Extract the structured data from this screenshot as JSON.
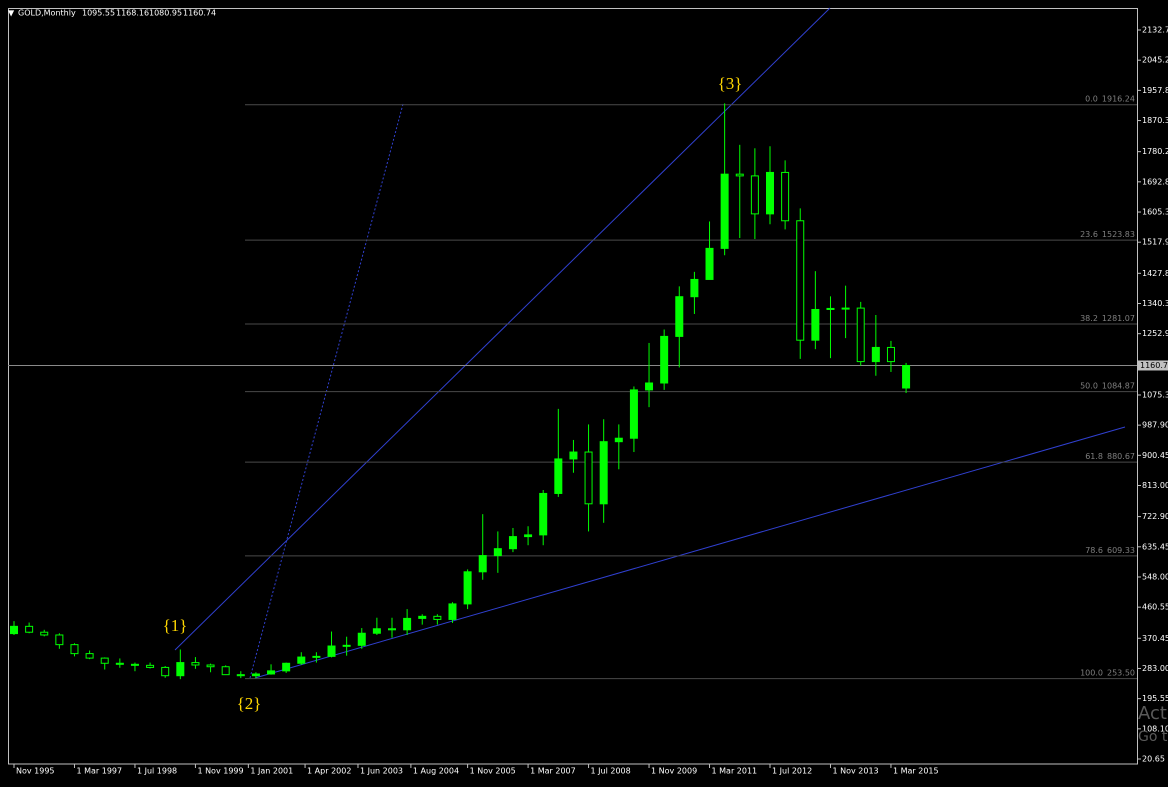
{
  "chart_data": {
    "type": "candlestick",
    "symbol": "GOLD,Monthly",
    "open": [
      384,
      405,
      388,
      380,
      352,
      326,
      313,
      298,
      295,
      292,
      286,
      262,
      300,
      293,
      288,
      265,
      262,
      267,
      276,
      298,
      316,
      318,
      348,
      350,
      385,
      398,
      395,
      428,
      434,
      425,
      470,
      563,
      610,
      630,
      665,
      670,
      790,
      890,
      910,
      760,
      940,
      950,
      1090,
      1110,
      1245,
      1360,
      1410,
      1500,
      1715,
      1710,
      1600,
      1720,
      1580,
      1234,
      1323,
      1326,
      1327,
      1172,
      1213,
      1095.55
    ],
    "high": [
      420,
      416,
      395,
      385,
      356,
      335,
      315,
      312,
      300,
      300,
      290,
      338,
      316,
      297,
      292,
      275,
      272,
      295,
      300,
      330,
      330,
      390,
      375,
      400,
      430,
      430,
      455,
      440,
      440,
      475,
      570,
      730,
      680,
      690,
      695,
      800,
      1035,
      945,
      990,
      1005,
      990,
      1100,
      1226,
      1265,
      1390,
      1432,
      1578,
      1920,
      1800,
      1790,
      1796,
      1755,
      1616,
      1434,
      1361,
      1392,
      1345,
      1307,
      1232,
      1168.16
    ],
    "low": [
      380,
      385,
      376,
      340,
      318,
      310,
      280,
      285,
      275,
      283,
      256,
      252,
      282,
      272,
      264,
      255,
      255,
      265,
      270,
      293,
      300,
      315,
      320,
      340,
      380,
      372,
      380,
      410,
      410,
      415,
      455,
      540,
      560,
      620,
      640,
      640,
      780,
      850,
      680,
      705,
      860,
      910,
      1040,
      1090,
      1155,
      1310,
      1410,
      1480,
      1530,
      1527,
      1570,
      1555,
      1180,
      1208,
      1182,
      1240,
      1160,
      1131,
      1142,
      1080.95
    ],
    "close": [
      405,
      388,
      380,
      352,
      326,
      313,
      298,
      295,
      292,
      286,
      262,
      300,
      293,
      288,
      265,
      262,
      267,
      276,
      298,
      316,
      318,
      348,
      350,
      385,
      398,
      395,
      428,
      434,
      425,
      470,
      563,
      610,
      630,
      665,
      670,
      790,
      890,
      910,
      760,
      940,
      950,
      1090,
      1110,
      1245,
      1360,
      1410,
      1500,
      1715,
      1710,
      1600,
      1720,
      1580,
      1234,
      1323,
      1326,
      1327,
      1172,
      1213,
      1172,
      1160.74
    ],
    "colors": {
      "up": "#00ff00",
      "down": "#000000",
      "wick": "#00ff00"
    },
    "ylim": [
      6.2,
      2196.4
    ],
    "yticks": [
      2132.7,
      2045.2,
      1957.8,
      1870.3,
      1780.2,
      1692.8,
      1605.3,
      1517.9,
      1427.8,
      1340.3,
      1252.9,
      1075.3,
      {
        "value": 987.9,
        "label": "987.90"
      },
      900.45,
      {
        "value": 813,
        "label": "813.00"
      },
      {
        "value": 722.9,
        "label": "722.90"
      },
      635.45,
      {
        "value": 548,
        "label": "548.00"
      },
      460.55,
      370.45,
      {
        "value": 283,
        "label": "283.00"
      },
      195.55,
      {
        "value": 108.1,
        "label": "108.10"
      },
      20.65
    ],
    "xticks": [
      {
        "value": 0,
        "label": "Nov 1995"
      },
      {
        "value": 4,
        "label": "1 Mar 1997"
      },
      {
        "value": 8,
        "label": "1 Jul 1998"
      },
      {
        "value": 12,
        "label": "1 Nov 1999"
      },
      {
        "value": 15.5,
        "label": "1 Jan 2001"
      },
      {
        "value": 19.25,
        "label": "1 Apr 2002"
      },
      {
        "value": 22.75,
        "label": "1 Jun 2003"
      },
      {
        "value": 26.25,
        "label": "1 Aug 2004"
      },
      {
        "value": 30,
        "label": "1 Nov 2005"
      },
      {
        "value": 34,
        "label": "1 Mar 2007"
      },
      {
        "value": 38,
        "label": "1 Jul 2008"
      },
      {
        "value": 42,
        "label": "1 Nov 2009"
      },
      {
        "value": 46,
        "label": "1 Mar 2011"
      },
      {
        "value": 50,
        "label": "1 Jul 2012"
      },
      {
        "value": 54,
        "label": "1 Nov 2013"
      },
      {
        "value": 58,
        "label": "1 Mar 2015"
      }
    ],
    "price_line": {
      "value": 1160.74,
      "label": "1160.7"
    },
    "fibonacci": [
      {
        "ratio": "0.0",
        "price": 1916.24
      },
      {
        "ratio": "23.6",
        "price": 1523.83
      },
      {
        "ratio": "38.2",
        "price": 1281.07
      },
      {
        "ratio": "50.0",
        "price": 1084.87
      },
      {
        "ratio": "61.8",
        "price": 880.67
      },
      {
        "ratio": "78.6",
        "price": 609.33
      },
      {
        "ratio": "100.0",
        "price": {
          "value": 253.5,
          "label": "253.50"
        }
      }
    ],
    "annotations": [
      "{1}",
      "{2}",
      "{3}"
    ],
    "watermark": [
      "Act",
      "Go to"
    ]
  }
}
